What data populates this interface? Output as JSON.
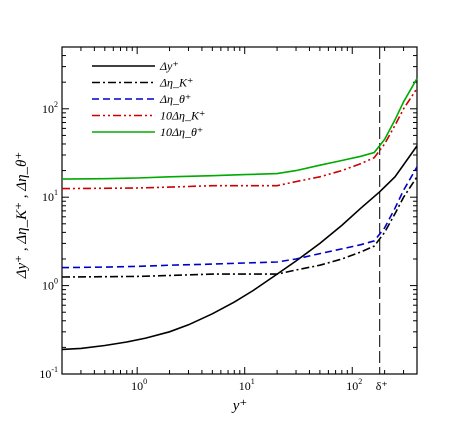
{
  "chart_data": {
    "type": "line",
    "xscale": "log",
    "yscale": "log",
    "xlim": [
      0.2,
      400
    ],
    "ylim": [
      0.1,
      500
    ],
    "xlabel": "y⁺",
    "ylabel": "Δy⁺ , Δη_K⁺ , Δη_θ⁺",
    "x_ticks": [
      {
        "base": "10",
        "exp": "0",
        "value": 1
      },
      {
        "base": "10",
        "exp": "1",
        "value": 10
      },
      {
        "base": "10",
        "exp": "2",
        "value": 100
      }
    ],
    "y_ticks": [
      {
        "base": "10",
        "exp": "-1",
        "value": 0.1
      },
      {
        "base": "10",
        "exp": "0",
        "value": 1
      },
      {
        "base": "10",
        "exp": "1",
        "value": 10
      },
      {
        "base": "10",
        "exp": "2",
        "value": 100
      }
    ],
    "vertical_marker": {
      "x": 180,
      "label": "δ⁺"
    },
    "legend_position": "top-left",
    "grid": false,
    "series": [
      {
        "name": "Δy⁺",
        "color": "#000000",
        "style": "solid",
        "x": [
          0.2,
          0.3,
          0.5,
          0.8,
          1.2,
          2,
          3,
          5,
          8,
          12,
          20,
          30,
          50,
          80,
          120,
          180,
          250,
          400
        ],
        "y": [
          0.19,
          0.195,
          0.21,
          0.23,
          0.255,
          0.3,
          0.36,
          0.48,
          0.65,
          0.88,
          1.35,
          1.9,
          3.0,
          4.8,
          7.5,
          11.5,
          17,
          38
        ]
      },
      {
        "name": "Δη_K⁺",
        "color": "#000000",
        "style": "dashdot",
        "x": [
          0.2,
          0.5,
          1,
          2,
          5,
          10,
          20,
          30,
          50,
          80,
          120,
          160,
          200,
          250,
          300,
          400
        ],
        "y": [
          1.25,
          1.26,
          1.27,
          1.3,
          1.35,
          1.35,
          1.35,
          1.5,
          1.7,
          2.0,
          2.4,
          2.8,
          4.0,
          6.5,
          10,
          17
        ]
      },
      {
        "name": "Δη_θ⁺",
        "color": "#0000cc",
        "style": "dashed",
        "x": [
          0.2,
          0.5,
          1,
          2,
          5,
          10,
          20,
          30,
          50,
          80,
          120,
          160,
          200,
          250,
          300,
          400
        ],
        "y": [
          1.6,
          1.62,
          1.65,
          1.7,
          1.75,
          1.8,
          1.85,
          2.0,
          2.3,
          2.6,
          2.9,
          3.2,
          4.5,
          7.5,
          12,
          22
        ]
      },
      {
        "name": "10Δη_K⁺",
        "color": "#cc0000",
        "style": "dashdotdot",
        "x": [
          0.2,
          0.5,
          1,
          2,
          5,
          10,
          20,
          30,
          50,
          80,
          120,
          160,
          200,
          250,
          300,
          400
        ],
        "y": [
          12.5,
          12.6,
          12.7,
          13,
          13.5,
          13.5,
          13.5,
          15,
          17,
          20,
          24,
          28,
          40,
          65,
          100,
          170
        ]
      },
      {
        "name": "10Δη_θ⁺",
        "color": "#00aa00",
        "style": "solid",
        "x": [
          0.2,
          0.5,
          1,
          2,
          5,
          10,
          20,
          30,
          50,
          80,
          120,
          160,
          200,
          250,
          300,
          400
        ],
        "y": [
          16,
          16.2,
          16.5,
          17,
          17.5,
          18,
          18.5,
          20,
          23,
          26,
          29,
          32,
          45,
          75,
          120,
          220
        ]
      }
    ]
  }
}
